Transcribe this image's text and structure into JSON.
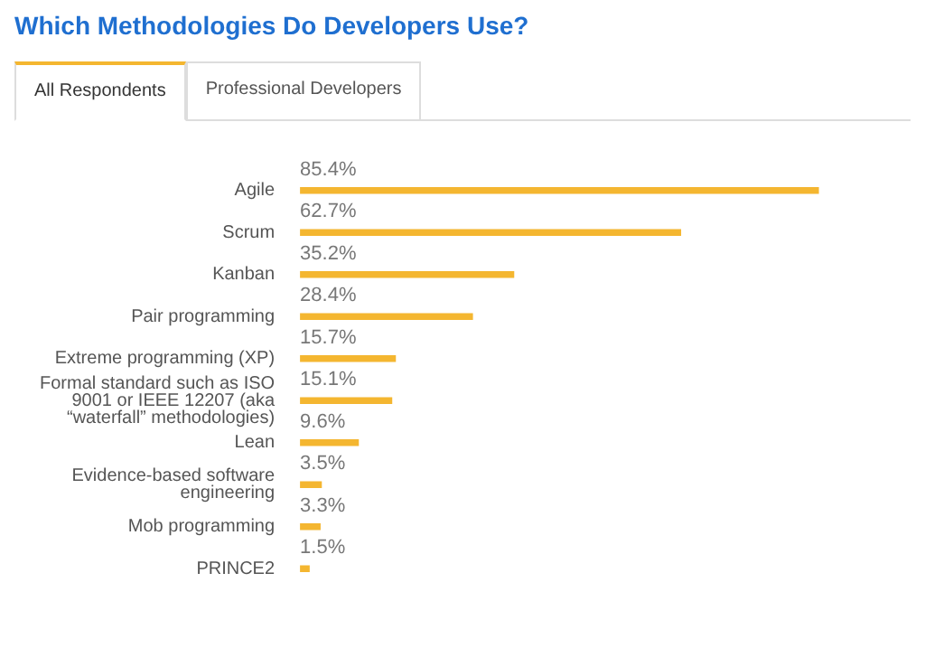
{
  "chart_data": {
    "type": "bar",
    "orientation": "horizontal",
    "title": "Which Methodologies Do Developers Use?",
    "annotations": [
      "All Respondents",
      "Professional Developers"
    ],
    "categories": [
      "Agile",
      "Scrum",
      "Kanban",
      "Pair programming",
      "Extreme programming (XP)",
      "Formal standard such as ISO 9001 or IEEE 12207 (aka “waterfall” methodologies)",
      "Lean",
      "Evidence-based software engineering",
      "Mob programming",
      "PRINCE2"
    ],
    "values": [
      85.4,
      62.7,
      35.2,
      28.4,
      15.7,
      15.1,
      9.6,
      3.5,
      3.3,
      1.5
    ],
    "value_labels": [
      "85.4%",
      "62.7%",
      "35.2%",
      "28.4%",
      "15.7%",
      "15.1%",
      "9.6%",
      "3.5%",
      "3.3%",
      "1.5%"
    ],
    "color": "#f4b630",
    "grid": false,
    "legend": false,
    "tick_labels": "y"
  }
}
